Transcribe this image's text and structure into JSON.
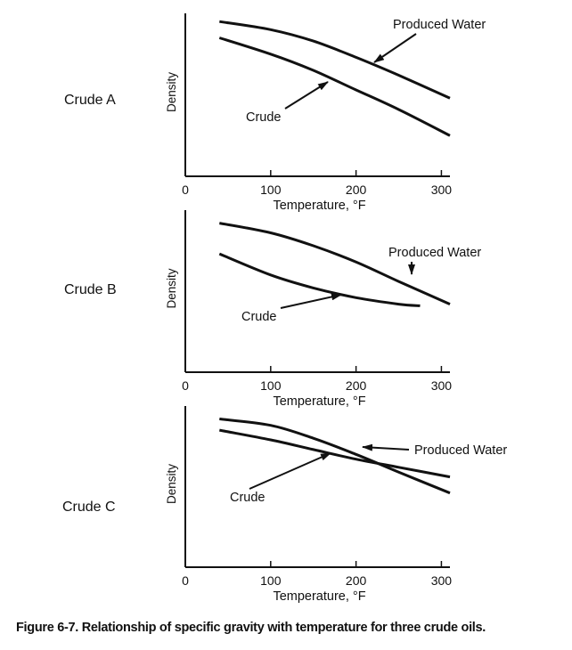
{
  "caption": "Figure 6-7. Relationship of specific gravity with temperature for three crude oils.",
  "chart_data": [
    {
      "type": "line",
      "title": "Crude A",
      "xlabel": "Temperature, °F",
      "ylabel": "Density",
      "xlim": [
        0,
        310
      ],
      "ylim": [
        0,
        100
      ],
      "xticks": [
        0,
        100,
        200,
        300
      ],
      "grid": false,
      "series": [
        {
          "name": "Produced Water",
          "x": [
            40,
            100,
            150,
            200,
            250,
            310
          ],
          "y": [
            95,
            90,
            83,
            73,
            62,
            48
          ]
        },
        {
          "name": "Crude",
          "x": [
            40,
            100,
            150,
            200,
            250,
            310
          ],
          "y": [
            85,
            75,
            65,
            53,
            41,
            25
          ]
        }
      ],
      "annotations": [
        {
          "text": "Produced Water",
          "arrow_to_series": "Produced Water",
          "at_x": 200
        },
        {
          "text": "Crude",
          "arrow_to_series": "Crude",
          "at_x": 150
        }
      ]
    },
    {
      "type": "line",
      "title": "Crude B",
      "xlabel": "Temperature, °F",
      "ylabel": "Density",
      "xlim": [
        0,
        310
      ],
      "ylim": [
        0,
        100
      ],
      "xticks": [
        0,
        100,
        200,
        300
      ],
      "grid": false,
      "series": [
        {
          "name": "Produced Water",
          "x": [
            40,
            100,
            150,
            200,
            250,
            310
          ],
          "y": [
            92,
            86,
            78,
            68,
            56,
            42
          ]
        },
        {
          "name": "Crude",
          "x": [
            40,
            100,
            150,
            200,
            250,
            275
          ],
          "y": [
            73,
            60,
            52,
            46,
            42,
            41
          ]
        }
      ],
      "annotations": [
        {
          "text": "Produced Water",
          "arrow_to_series": "Produced Water",
          "at_x": 250
        },
        {
          "text": "Crude",
          "arrow_to_series": "Crude",
          "at_x": 170
        }
      ]
    },
    {
      "type": "line",
      "title": "Crude C",
      "xlabel": "Temperature, °F",
      "ylabel": "Density",
      "xlim": [
        0,
        310
      ],
      "ylim": [
        0,
        100
      ],
      "xticks": [
        0,
        100,
        200,
        300
      ],
      "grid": false,
      "series": [
        {
          "name": "Produced Water",
          "x": [
            40,
            100,
            150,
            200,
            250,
            310
          ],
          "y": [
            92,
            88,
            80,
            70,
            59,
            46
          ]
        },
        {
          "name": "Crude",
          "x": [
            40,
            100,
            150,
            200,
            250,
            310
          ],
          "y": [
            85,
            79,
            73,
            67,
            62,
            56
          ]
        }
      ],
      "annotations": [
        {
          "text": "Produced Water",
          "arrow_to_series": "Produced Water",
          "at_x": 200
        },
        {
          "text": "Crude",
          "arrow_to_series": "Crude",
          "at_x": 160
        }
      ]
    }
  ]
}
